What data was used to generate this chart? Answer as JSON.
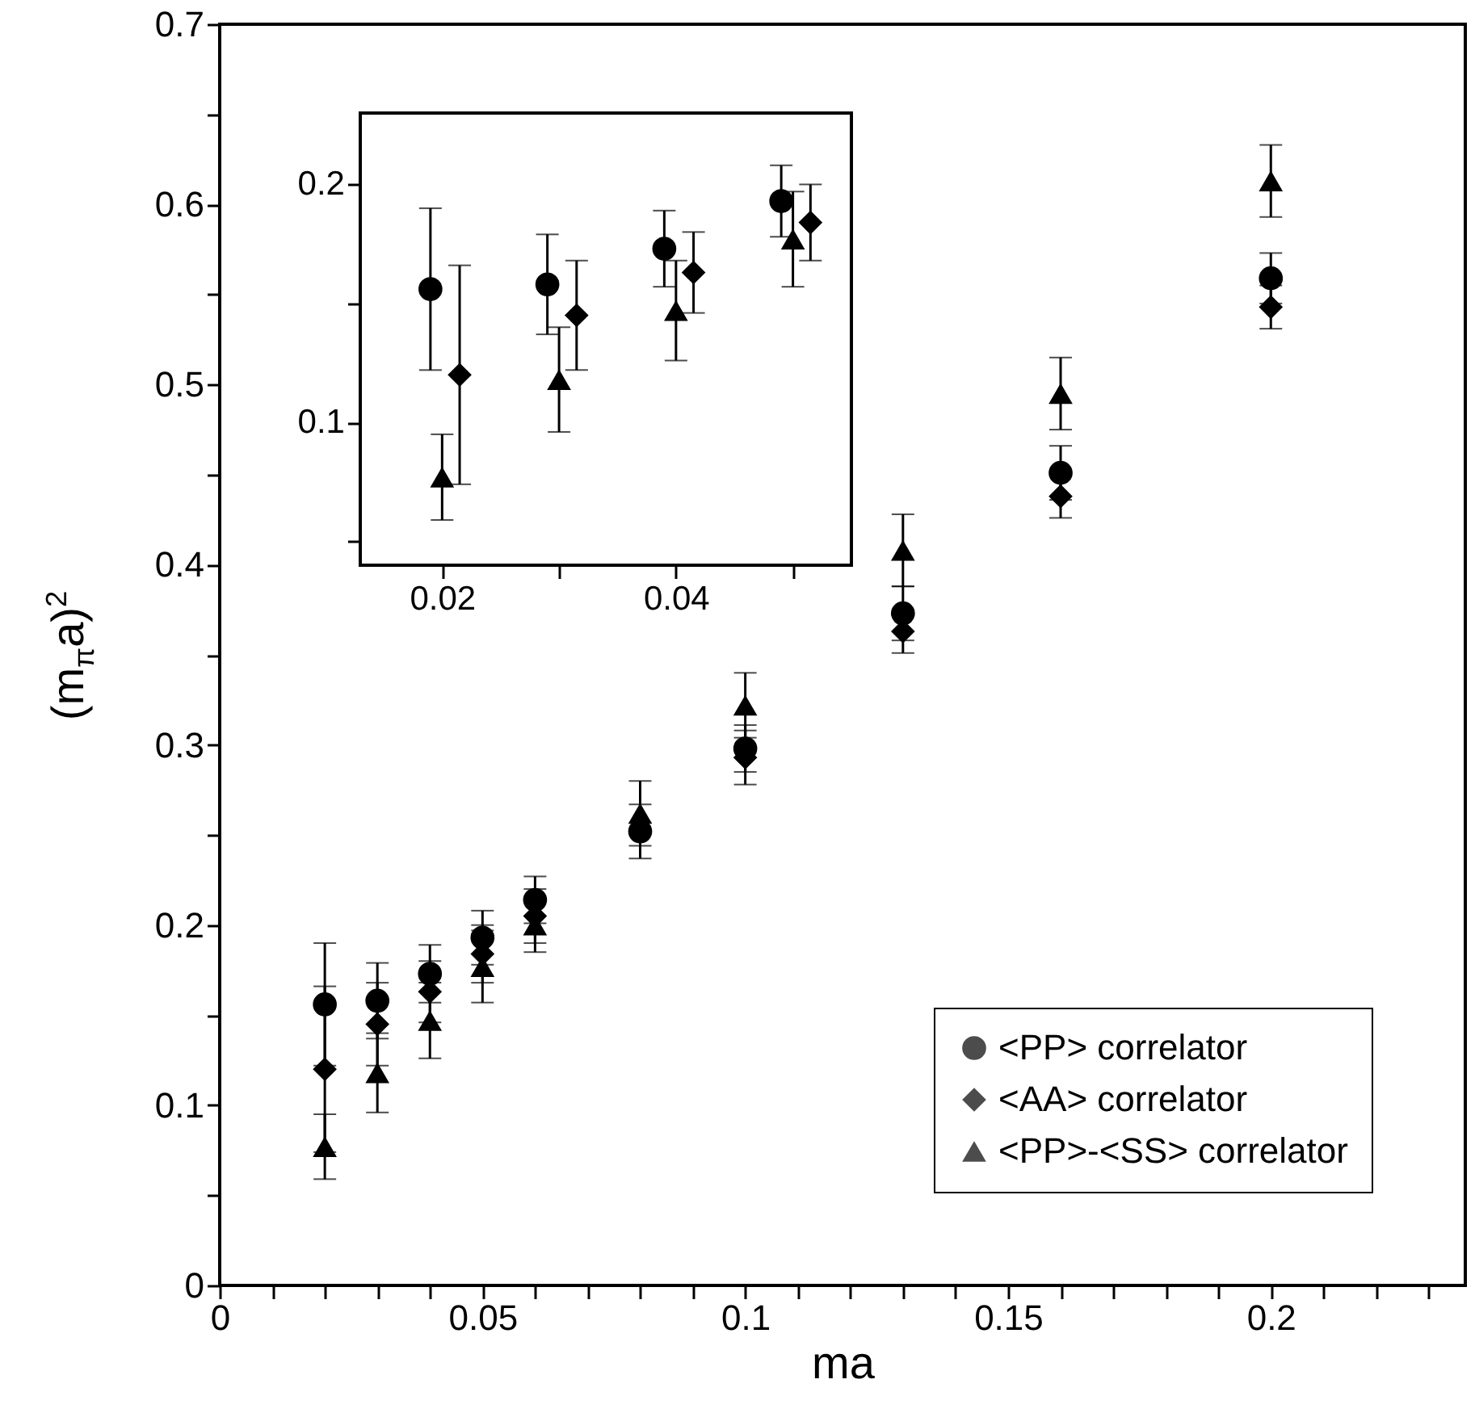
{
  "chart_data": [
    {
      "type": "scatter",
      "xlabel": "ma",
      "ylabel": "(m$_{π}$a)$^{2}$",
      "x": [
        0.02,
        0.03,
        0.04,
        0.05,
        0.06,
        0.08,
        0.1,
        0.13,
        0.16,
        0.2
      ],
      "xlim": [
        0,
        0.237
      ],
      "ylim": [
        0,
        0.7
      ],
      "xticks": [
        0,
        {
          "value": 0.01,
          "label": null
        },
        {
          "value": 0.02,
          "label": null
        },
        {
          "value": 0.03,
          "label": null
        },
        {
          "value": 0.04,
          "label": null
        },
        0.05,
        {
          "value": 0.06,
          "label": null
        },
        {
          "value": 0.07,
          "label": null
        },
        {
          "value": 0.08,
          "label": null
        },
        {
          "value": 0.09,
          "label": null
        },
        0.1,
        {
          "value": 0.11,
          "label": null
        },
        {
          "value": 0.12,
          "label": null
        },
        {
          "value": 0.13,
          "label": null
        },
        {
          "value": 0.14,
          "label": null
        },
        0.15,
        {
          "value": 0.16,
          "label": null
        },
        {
          "value": 0.17,
          "label": null
        },
        {
          "value": 0.18,
          "label": null
        },
        {
          "value": 0.19,
          "label": null
        },
        0.2,
        {
          "value": 0.21,
          "label": null
        },
        {
          "value": 0.22,
          "label": null
        },
        {
          "value": 0.23,
          "label": null
        }
      ],
      "yticks": [
        0,
        {
          "value": 0.05,
          "label": null
        },
        0.1,
        {
          "value": 0.15,
          "label": null
        },
        0.2,
        {
          "value": 0.25,
          "label": null
        },
        0.3,
        {
          "value": 0.35,
          "label": null
        },
        0.4,
        {
          "value": 0.45,
          "label": null
        },
        0.5,
        {
          "value": 0.55,
          "label": null
        },
        0.6,
        {
          "value": 0.65,
          "label": null
        },
        0.7
      ],
      "legend": "bottom right",
      "grid": false,
      "series": [
        {
          "name": "<PP> correlator",
          "color": "#000000",
          "marker": "circle",
          "values": [
            0.156,
            0.158,
            0.173,
            0.193,
            0.214,
            0.252,
            0.298,
            0.373,
            0.451,
            0.559
          ],
          "errors": [
            0.034,
            0.021,
            0.016,
            0.015,
            0.013,
            0.015,
            0.013,
            0.015,
            0.015,
            0.014
          ]
        },
        {
          "name": "<AA> correlator",
          "color": "#000000",
          "marker": "diamond",
          "values": [
            0.12,
            0.145,
            0.163,
            0.184,
            0.205,
            null,
            0.293,
            0.363,
            0.438,
            0.543
          ],
          "errors": [
            0.046,
            0.023,
            0.017,
            0.016,
            0.015,
            null,
            0.015,
            0.012,
            0.012,
            0.012
          ]
        },
        {
          "name": "<PP>-<SS> correlator",
          "color": "#000000",
          "marker": "triangle",
          "values": [
            0.077,
            0.118,
            0.147,
            0.177,
            0.2,
            0.262,
            0.322,
            0.408,
            0.495,
            0.613
          ],
          "errors": [
            0.018,
            0.022,
            0.021,
            0.02,
            0.015,
            0.018,
            0.018,
            0.02,
            0.02,
            0.02
          ]
        }
      ]
    },
    {
      "type": "scatter",
      "xlim": [
        0.013,
        0.055
      ],
      "ylim": [
        0.04,
        0.23
      ],
      "xticks": [
        0.02,
        {
          "value": 0.03,
          "label": null
        },
        0.04,
        {
          "value": 0.05,
          "label": null
        }
      ],
      "yticks": [
        {
          "value": 0.05,
          "label": null
        },
        0.1,
        {
          "value": 0.15,
          "label": null
        },
        0.2
      ],
      "grid": false,
      "series": [
        {
          "color": "#000000",
          "marker": "circle",
          "x": [
            0.019,
            0.029,
            0.039,
            0.049
          ],
          "values": [
            0.156,
            0.158,
            0.173,
            0.193
          ],
          "errors": [
            0.034,
            0.021,
            0.016,
            0.015
          ]
        },
        {
          "color": "#000000",
          "marker": "diamond",
          "x": [
            0.0215,
            0.0315,
            0.0415,
            0.0515
          ],
          "values": [
            0.12,
            0.145,
            0.163,
            0.184
          ],
          "errors": [
            0.046,
            0.023,
            0.017,
            0.016
          ]
        },
        {
          "color": "#000000",
          "marker": "triangle",
          "x": [
            0.02,
            0.03,
            0.04,
            0.05
          ],
          "values": [
            0.077,
            0.118,
            0.147,
            0.177
          ],
          "errors": [
            0.018,
            0.022,
            0.021,
            0.02
          ]
        }
      ]
    }
  ]
}
